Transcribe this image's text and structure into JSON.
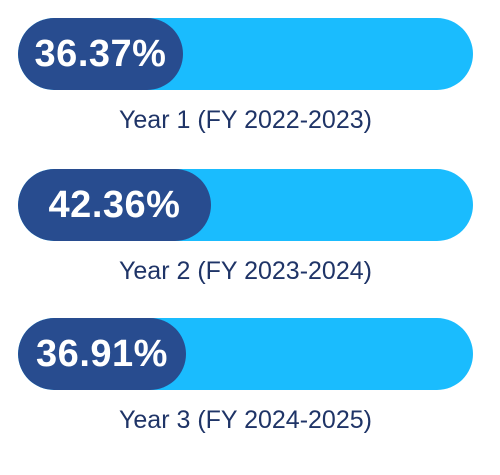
{
  "colors": {
    "track": "#1ABCFE",
    "fill": "#284C8F",
    "label": "#1F3467",
    "value_text": "#FFFFFF"
  },
  "chart_data": {
    "type": "bar",
    "categories": [
      "Year 1 (FY 2022-2023)",
      "Year 2 (FY 2023-2024)",
      "Year 3 (FY 2024-2025)"
    ],
    "values": [
      36.37,
      42.36,
      36.91
    ],
    "value_labels": [
      "36.37%",
      "42.36%",
      "36.91%"
    ],
    "unit": "%",
    "xlim": [
      0,
      100
    ],
    "orientation": "horizontal",
    "grid": false
  }
}
